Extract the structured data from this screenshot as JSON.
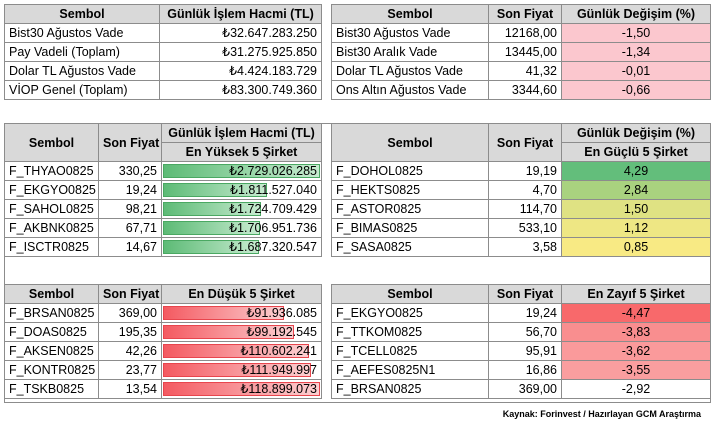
{
  "volume_table": {
    "headers": [
      "Sembol",
      "Günlük İşlem Hacmi (TL)"
    ],
    "rows": [
      {
        "symbol": "Bist30 Ağustos Vade",
        "volume": "₺32.647.283.250"
      },
      {
        "symbol": "Pay Vadeli (Toplam)",
        "volume": "₺31.275.925.850"
      },
      {
        "symbol": "Dolar TL Ağustos Vade",
        "volume": "₺4.424.183.729"
      },
      {
        "symbol": "VİOP Genel (Toplam)",
        "volume": "₺83.300.749.360"
      }
    ]
  },
  "change_table": {
    "headers": [
      "Sembol",
      "Son Fiyat",
      "Günlük Değişim (%)"
    ],
    "rows": [
      {
        "symbol": "Bist30 Ağustos Vade",
        "price": "12168,00",
        "change": "-1,50"
      },
      {
        "symbol": "Bist30 Aralık Vade",
        "price": "13445,00",
        "change": "-1,34"
      },
      {
        "symbol": "Dolar TL Ağustos Vade",
        "price": "41,32",
        "change": "-0,01"
      },
      {
        "symbol": "Ons Altın Ağustos Vade",
        "price": "3344,60",
        "change": "-0,66"
      }
    ]
  },
  "top_volume": {
    "headers": [
      "Sembol",
      "Son Fiyat",
      "Günlük İşlem Hacmi (TL)"
    ],
    "subheader": "En Yüksek 5 Şirket",
    "rows": [
      {
        "symbol": "F_THYAO0825",
        "price": "330,25",
        "volume": "₺2.729.026.285",
        "fill": 1.0
      },
      {
        "symbol": "F_EKGYO0825",
        "price": "19,24",
        "volume": "₺1.811.527.040",
        "fill": 0.664
      },
      {
        "symbol": "F_SAHOL0825",
        "price": "98,21",
        "volume": "₺1.724.709.429",
        "fill": 0.632
      },
      {
        "symbol": "F_AKBNK0825",
        "price": "67,71",
        "volume": "₺1.706.951.736",
        "fill": 0.625
      },
      {
        "symbol": "F_ISCTR0825",
        "price": "14,67",
        "volume": "₺1.687.320.547",
        "fill": 0.618
      }
    ]
  },
  "top_gainers": {
    "headers": [
      "Sembol",
      "Son Fiyat",
      "Günlük Değişim (%)"
    ],
    "subheader": "En Güçlü 5 Şirket",
    "rows": [
      {
        "symbol": "F_DOHOL0825",
        "price": "19,19",
        "change": "4,29",
        "color": "#63be7b"
      },
      {
        "symbol": "F_HEKTS0825",
        "price": "4,70",
        "change": "2,84",
        "color": "#a9d27f"
      },
      {
        "symbol": "F_ASTOR0825",
        "price": "114,70",
        "change": "1,50",
        "color": "#dfe283"
      },
      {
        "symbol": "F_BIMAS0825",
        "price": "533,10",
        "change": "1,12",
        "color": "#eee784"
      },
      {
        "symbol": "F_SASA0825",
        "price": "3,58",
        "change": "0,85",
        "color": "#f8ea84"
      }
    ]
  },
  "low_volume": {
    "headers": [
      "Sembol",
      "Son Fiyat",
      "En Düşük 5 Şirket"
    ],
    "rows": [
      {
        "symbol": "F_BRSAN0825",
        "price": "369,00",
        "volume": "₺91.936.085",
        "fill": 0.773
      },
      {
        "symbol": "F_DOAS0825",
        "price": "195,35",
        "volume": "₺99.192.545",
        "fill": 0.834
      },
      {
        "symbol": "F_AKSEN0825",
        "price": "42,26",
        "volume": "₺110.602.241",
        "fill": 0.93
      },
      {
        "symbol": "F_KONTR0825",
        "price": "23,77",
        "volume": "₺111.949.997",
        "fill": 0.941
      },
      {
        "symbol": "F_TSKB0825",
        "price": "13,54",
        "volume": "₺118.899.073",
        "fill": 1.0
      }
    ]
  },
  "top_losers": {
    "headers": [
      "Sembol",
      "Son Fiyat",
      "En Zayıf 5 Şirket"
    ],
    "rows": [
      {
        "symbol": "F_EKGYO0825",
        "price": "19,24",
        "change": "-4,47",
        "color": "#f8696b"
      },
      {
        "symbol": "F_TTKOM0825",
        "price": "56,70",
        "change": "-3,83",
        "color": "#f98e8f"
      },
      {
        "symbol": "F_TCELL0825",
        "price": "95,91",
        "change": "-3,62",
        "color": "#fa9a9b"
      },
      {
        "symbol": "F_AEFES0825N1",
        "price": "16,86",
        "change": "-3,55",
        "color": "#fa9e9f"
      },
      {
        "symbol": "F_BRSAN0825",
        "price": "369,00",
        "change": "-2,92",
        "color": "#ffffff"
      }
    ]
  },
  "source_note": "Kaynak: Forinvest / Hazırlayan GCM Araştırma"
}
